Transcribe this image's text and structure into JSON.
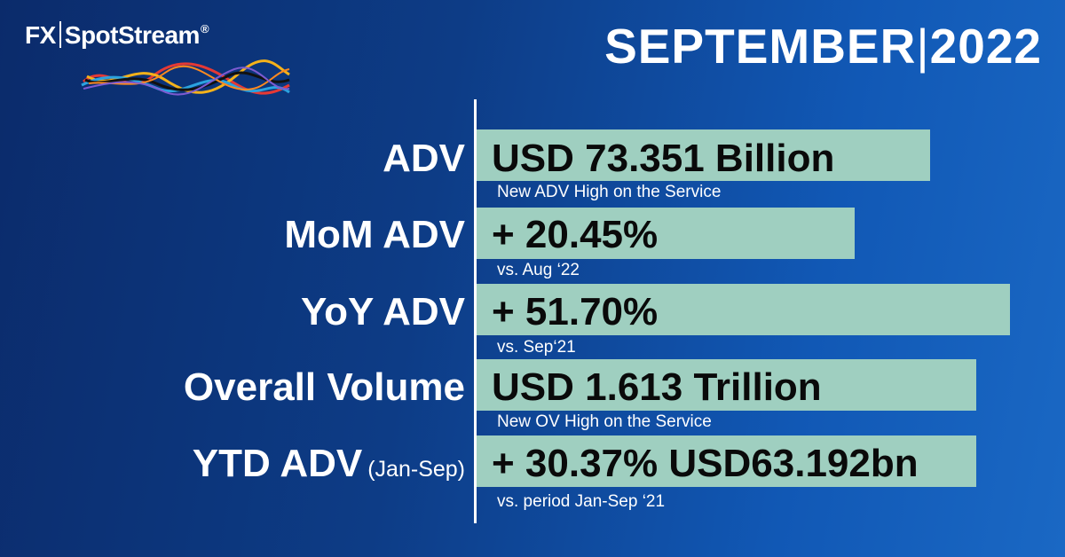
{
  "brand": {
    "name_left": "FX",
    "name_right": "SpotStream",
    "registered": "®"
  },
  "header": {
    "month": "SEPTEMBER",
    "separator": "|",
    "year": "2022"
  },
  "colors": {
    "bar_fill": "#9fcfc0",
    "background": "#0d3c86",
    "text": "#ffffff",
    "value_text": "#0a0a0a"
  },
  "rows": [
    {
      "label": "ADV",
      "label_note": "",
      "value": "USD 73.351 Billion",
      "note": "New ADV High on the Service"
    },
    {
      "label": "MoM ADV",
      "label_note": "",
      "value": "+ 20.45%",
      "note": "vs. Aug ‘22"
    },
    {
      "label": "YoY ADV",
      "label_note": "",
      "value": "+ 51.70%",
      "note": "vs. Sep‘21"
    },
    {
      "label": "Overall Volume",
      "label_note": "",
      "value": "USD 1.613 Trillion",
      "note": "New OV High on the Service"
    },
    {
      "label": "YTD ADV",
      "label_note": "(Jan-Sep)",
      "value": "+ 30.37% USD63.192bn",
      "note": "vs. period Jan-Sep ‘21"
    }
  ]
}
